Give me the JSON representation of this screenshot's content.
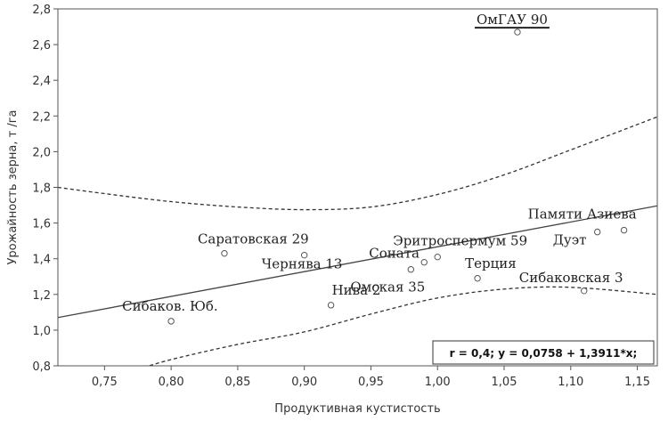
{
  "chart_data": {
    "type": "scatter",
    "xlabel": "Продуктивная кустистость",
    "ylabel": "Урожайность зерна, т /га",
    "xlim": [
      0.715,
      1.165
    ],
    "ylim": [
      0.8,
      2.8
    ],
    "x_ticks": [
      "0,75",
      "0,80",
      "0,85",
      "0,90",
      "0,95",
      "1,00",
      "1,05",
      "1,10",
      "1,15"
    ],
    "y_ticks": [
      "0,8",
      "1,0",
      "1,2",
      "1,4",
      "1,6",
      "1,8",
      "2,0",
      "2,2",
      "2,4",
      "2,6",
      "2,8"
    ],
    "grid": false,
    "points": [
      {
        "label": "Сибаков. Юб.",
        "x": 0.8,
        "y": 1.05
      },
      {
        "label": "Саратовская 29",
        "x": 0.84,
        "y": 1.43
      },
      {
        "label": "Чернява 13",
        "x": 0.9,
        "y": 1.42
      },
      {
        "label": "Нива 2",
        "x": 0.92,
        "y": 1.14
      },
      {
        "label": "Омская 35",
        "x": 0.98,
        "y": 1.34
      },
      {
        "label": "Соната",
        "x": 0.99,
        "y": 1.38
      },
      {
        "label": "Эритроспермум 59",
        "x": 1.0,
        "y": 1.41
      },
      {
        "label": "Терция",
        "x": 1.03,
        "y": 1.29
      },
      {
        "label": "ОмГАУ 90",
        "x": 1.06,
        "y": 2.67
      },
      {
        "label": "Сибаковская 3",
        "x": 1.11,
        "y": 1.22
      },
      {
        "label": "Дуэт",
        "x": 1.12,
        "y": 1.55
      },
      {
        "label": "Памяти Азиева",
        "x": 1.14,
        "y": 1.56
      }
    ],
    "regression": {
      "intercept": 0.0758,
      "slope": 1.3911
    },
    "confidence_band": {
      "upper": [
        [
          0.715,
          1.8
        ],
        [
          0.75,
          1.765
        ],
        [
          0.8,
          1.72
        ],
        [
          0.85,
          1.69
        ],
        [
          0.9,
          1.675
        ],
        [
          0.95,
          1.69
        ],
        [
          1.0,
          1.76
        ],
        [
          1.05,
          1.87
        ],
        [
          1.1,
          2.01
        ],
        [
          1.165,
          2.195
        ]
      ],
      "lower": [
        [
          0.775,
          0.78
        ],
        [
          0.8,
          0.835
        ],
        [
          0.85,
          0.92
        ],
        [
          0.9,
          0.99
        ],
        [
          0.95,
          1.09
        ],
        [
          1.0,
          1.18
        ],
        [
          1.05,
          1.23
        ],
        [
          1.1,
          1.24
        ],
        [
          1.165,
          1.2
        ]
      ]
    },
    "annotation": "r = 0,4; y = 0,0758 + 1,3911*x;"
  }
}
